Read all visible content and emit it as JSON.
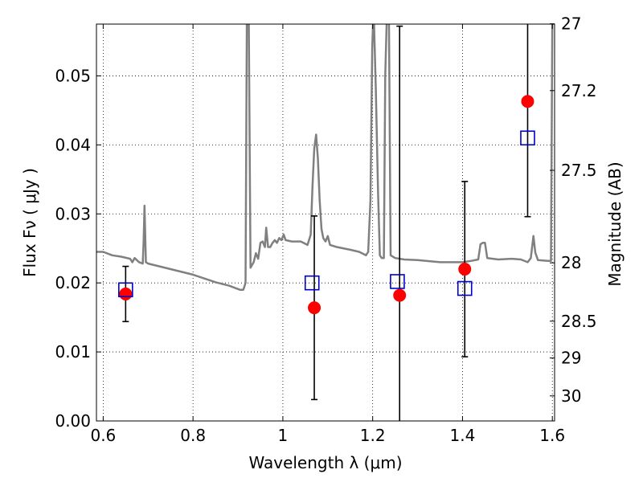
{
  "chart_data": {
    "type": "scatter",
    "xlabel": "Wavelength  λ (μm)",
    "ylabel": "Flux  Fν  ( μJy )",
    "y2label": "Magnitude (AB)",
    "xlim": [
      0.585,
      1.605
    ],
    "ylim": [
      0.0,
      0.0575
    ],
    "grid": true,
    "x_ticks": [
      "0.6",
      "0.8",
      "1",
      "1.2",
      "1.4",
      "1.6"
    ],
    "x_tick_values": [
      0.6,
      0.8,
      1.0,
      1.2,
      1.4,
      1.6
    ],
    "y_ticks": [
      "0.00",
      "0.01",
      "0.02",
      "0.03",
      "0.04",
      "0.05"
    ],
    "y_tick_values": [
      0.0,
      0.01,
      0.02,
      0.03,
      0.04,
      0.05
    ],
    "mag_ticks": [
      "27",
      "27.2",
      "27.5",
      "28",
      "28.5",
      "29",
      "30"
    ],
    "mag_tick_values": [
      27,
      27.2,
      27.5,
      28,
      28.5,
      29,
      30
    ],
    "colors": {
      "model": "#808080",
      "observed": "#ff0000",
      "model_phot": "#0000cc",
      "errorbar": "#000000",
      "grid": "#000000"
    },
    "observed": [
      {
        "x": 0.65,
        "y": 0.0184,
        "yerr_low": 0.004,
        "yerr_high": 0.004
      },
      {
        "x": 1.07,
        "y": 0.0164,
        "yerr_low": 0.0133,
        "yerr_high": 0.0133
      },
      {
        "x": 1.26,
        "y": 0.0182,
        "yerr_low": 0.019,
        "yerr_high": 0.039
      },
      {
        "x": 1.405,
        "y": 0.022,
        "yerr_low": 0.0127,
        "yerr_high": 0.0127
      },
      {
        "x": 1.545,
        "y": 0.0463,
        "yerr_low": 0.0167,
        "yerr_high": 0.0167
      }
    ],
    "model_photometry": [
      {
        "x": 0.65,
        "y": 0.019
      },
      {
        "x": 1.065,
        "y": 0.02
      },
      {
        "x": 1.255,
        "y": 0.0202
      },
      {
        "x": 1.405,
        "y": 0.0192
      },
      {
        "x": 1.545,
        "y": 0.041
      }
    ],
    "model_spectrum": [
      [
        0.585,
        0.0245
      ],
      [
        0.6,
        0.0245
      ],
      [
        0.62,
        0.024
      ],
      [
        0.64,
        0.0238
      ],
      [
        0.66,
        0.0235
      ],
      [
        0.665,
        0.023
      ],
      [
        0.67,
        0.0236
      ],
      [
        0.68,
        0.023
      ],
      [
        0.688,
        0.0228
      ],
      [
        0.69,
        0.026
      ],
      [
        0.692,
        0.0312
      ],
      [
        0.695,
        0.023
      ],
      [
        0.7,
        0.0228
      ],
      [
        0.75,
        0.022
      ],
      [
        0.8,
        0.0212
      ],
      [
        0.85,
        0.0201
      ],
      [
        0.88,
        0.0196
      ],
      [
        0.905,
        0.019
      ],
      [
        0.912,
        0.019
      ],
      [
        0.917,
        0.02
      ],
      [
        0.92,
        0.06
      ],
      [
        0.924,
        0.06
      ],
      [
        0.928,
        0.0222
      ],
      [
        0.935,
        0.023
      ],
      [
        0.94,
        0.0243
      ],
      [
        0.945,
        0.0235
      ],
      [
        0.95,
        0.0258
      ],
      [
        0.955,
        0.026
      ],
      [
        0.96,
        0.0252
      ],
      [
        0.963,
        0.028
      ],
      [
        0.967,
        0.0252
      ],
      [
        0.972,
        0.0252
      ],
      [
        0.977,
        0.0258
      ],
      [
        0.982,
        0.0262
      ],
      [
        0.987,
        0.0258
      ],
      [
        0.992,
        0.0265
      ],
      [
        0.997,
        0.0262
      ],
      [
        1.002,
        0.027
      ],
      [
        1.006,
        0.0262
      ],
      [
        1.02,
        0.026
      ],
      [
        1.04,
        0.026
      ],
      [
        1.055,
        0.0255
      ],
      [
        1.062,
        0.027
      ],
      [
        1.066,
        0.034
      ],
      [
        1.07,
        0.0395
      ],
      [
        1.074,
        0.0415
      ],
      [
        1.078,
        0.038
      ],
      [
        1.082,
        0.032
      ],
      [
        1.086,
        0.0278
      ],
      [
        1.09,
        0.0265
      ],
      [
        1.095,
        0.026
      ],
      [
        1.1,
        0.0268
      ],
      [
        1.105,
        0.0255
      ],
      [
        1.12,
        0.0252
      ],
      [
        1.15,
        0.0248
      ],
      [
        1.17,
        0.0245
      ],
      [
        1.185,
        0.024
      ],
      [
        1.19,
        0.0245
      ],
      [
        1.195,
        0.032
      ],
      [
        1.199,
        0.054
      ],
      [
        1.202,
        0.06
      ],
      [
        1.207,
        0.048
      ],
      [
        1.212,
        0.033
      ],
      [
        1.216,
        0.024
      ],
      [
        1.22,
        0.0236
      ],
      [
        1.225,
        0.0236
      ],
      [
        1.228,
        0.05
      ],
      [
        1.232,
        0.06
      ],
      [
        1.236,
        0.06
      ],
      [
        1.24,
        0.024
      ],
      [
        1.25,
        0.0236
      ],
      [
        1.27,
        0.0234
      ],
      [
        1.3,
        0.0233
      ],
      [
        1.35,
        0.023
      ],
      [
        1.4,
        0.023
      ],
      [
        1.42,
        0.0232
      ],
      [
        1.435,
        0.0234
      ],
      [
        1.44,
        0.0256
      ],
      [
        1.445,
        0.0258
      ],
      [
        1.45,
        0.0258
      ],
      [
        1.455,
        0.0236
      ],
      [
        1.48,
        0.0234
      ],
      [
        1.51,
        0.0235
      ],
      [
        1.53,
        0.0234
      ],
      [
        1.545,
        0.023
      ],
      [
        1.552,
        0.0236
      ],
      [
        1.558,
        0.0268
      ],
      [
        1.562,
        0.0244
      ],
      [
        1.568,
        0.0233
      ],
      [
        1.59,
        0.0232
      ],
      [
        1.597,
        0.0232
      ],
      [
        1.6,
        0.058
      ],
      [
        1.605,
        0.058
      ]
    ]
  }
}
